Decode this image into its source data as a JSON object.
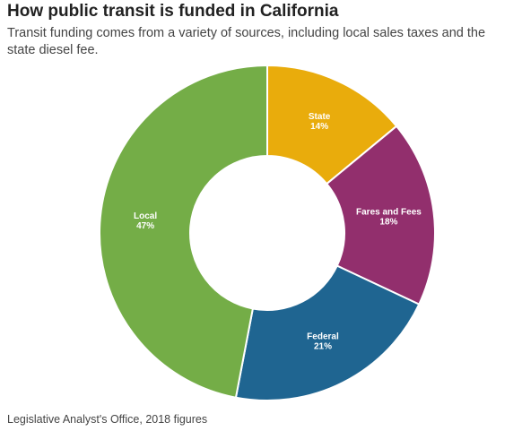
{
  "chart_data": {
    "type": "donut",
    "title": "How public transit is funded in California",
    "subtitle": "Transit funding comes from a variety of sources, including local sales taxes and the state diesel fee.",
    "source": "Legislative Analyst's Office, 2018 figures",
    "categories": [
      "State",
      "Fares and Fees",
      "Federal",
      "Local"
    ],
    "values": [
      14,
      18,
      21,
      47
    ],
    "value_labels": [
      "14%",
      "18%",
      "21%",
      "47%"
    ],
    "colors": [
      "#e9ac0c",
      "#922f6d",
      "#1f6591",
      "#74ad47"
    ]
  }
}
